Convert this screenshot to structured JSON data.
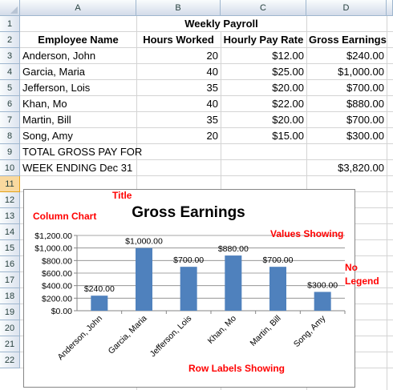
{
  "columns": [
    "A",
    "B",
    "C",
    "D"
  ],
  "rows": [
    "1",
    "2",
    "3",
    "4",
    "5",
    "6",
    "7",
    "8",
    "9",
    "10",
    "11",
    "12",
    "13",
    "14",
    "15",
    "16",
    "17",
    "18",
    "19",
    "20",
    "21",
    "22"
  ],
  "selected_row": "11",
  "title": "Weekly Payroll",
  "headers": [
    "Employee Name",
    "Hours Worked",
    "Hourly Pay Rate",
    "Gross Earnings"
  ],
  "employees": [
    {
      "name": "Anderson, John",
      "hours": "20",
      "rate": "$12.00",
      "gross": "$240.00"
    },
    {
      "name": "Garcia, Maria",
      "hours": "40",
      "rate": "$25.00",
      "gross": "$1,000.00"
    },
    {
      "name": "Jefferson, Lois",
      "hours": "35",
      "rate": "$20.00",
      "gross": "$700.00"
    },
    {
      "name": "Khan, Mo",
      "hours": "40",
      "rate": "$22.00",
      "gross": "$880.00"
    },
    {
      "name": "Martin, Bill",
      "hours": "35",
      "rate": "$20.00",
      "gross": "$700.00"
    },
    {
      "name": "Song, Amy",
      "hours": "20",
      "rate": "$15.00",
      "gross": "$300.00"
    }
  ],
  "total_label_1": "TOTAL GROSS PAY FOR",
  "total_label_2": "WEEK ENDING Dec 31",
  "total_value": "$3,820.00",
  "annotations": {
    "title": "Title",
    "column_chart": "Column Chart",
    "values_showing": "Values Showing",
    "no": "No",
    "legend": "Legend",
    "row_labels": "Row Labels Showing"
  },
  "colors": {
    "bar": "#4f81bd",
    "annotation": "#ff0000"
  },
  "chart_data": {
    "type": "bar",
    "title": "Gross Earnings",
    "categories": [
      "Anderson, John",
      "Garcia, Maria",
      "Jefferson, Lois",
      "Khan, Mo",
      "Martin, Bill",
      "Song, Amy"
    ],
    "values": [
      240,
      1000,
      700,
      880,
      700,
      300
    ],
    "data_labels": [
      "$240.00",
      "$1,000.00",
      "$700.00",
      "$880.00",
      "$700.00",
      "$300.00"
    ],
    "ylim": [
      0,
      1200
    ],
    "yticks": [
      "$0.00",
      "$200.00",
      "$400.00",
      "$600.00",
      "$800.00",
      "$1,000.00",
      "$1,200.00"
    ],
    "grid": true,
    "legend": "none"
  }
}
